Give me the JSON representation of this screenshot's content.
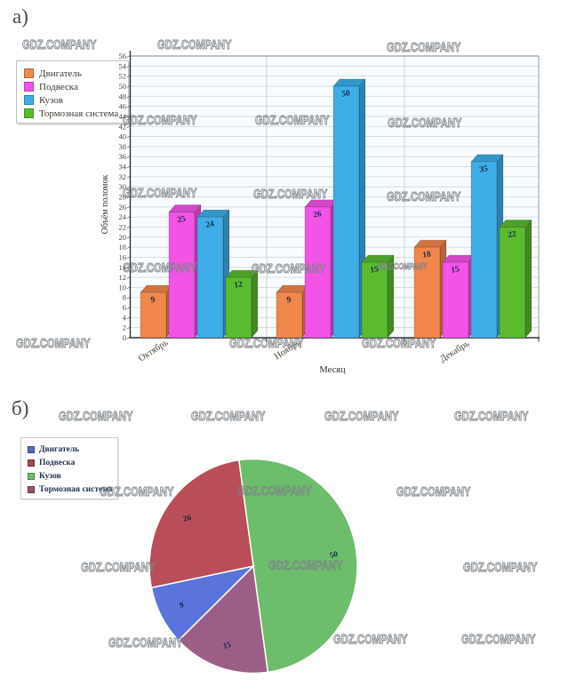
{
  "watermark": {
    "text": "GDZ.COMPANY"
  },
  "section_a": {
    "label": "а)"
  },
  "section_b": {
    "label": "б)"
  },
  "chart_data": [
    {
      "type": "bar",
      "style": "3d-bars",
      "categories": [
        "Октябрь",
        "Ноябрь",
        "Декабрь"
      ],
      "series": [
        {
          "name": "Двигатель",
          "color": "#F2874B",
          "values": [
            9,
            9,
            18
          ]
        },
        {
          "name": "Подвеска",
          "color": "#F353E7",
          "values": [
            25,
            26,
            15
          ]
        },
        {
          "name": "Кузов",
          "color": "#3DAEE8",
          "values": [
            24,
            50,
            35
          ]
        },
        {
          "name": "Тормозная система",
          "color": "#5ABB2F",
          "values": [
            12,
            15,
            22
          ]
        }
      ],
      "xlabel": "Месяц",
      "ylabel": "Объём поломок",
      "ylim": [
        0,
        56
      ],
      "ytick_step": 2,
      "grid": true,
      "legend_position": "top-left",
      "value_labels": true
    },
    {
      "type": "pie",
      "start_angle_deg": -8,
      "direction": "clockwise",
      "slices": [
        {
          "name": "Кузов",
          "value": 50,
          "color": "#6CBE6B"
        },
        {
          "name": "Тормозная система",
          "value": 15,
          "color": "#9B5F85"
        },
        {
          "name": "Двигатель",
          "value": 9,
          "color": "#5B74DB"
        },
        {
          "name": "Подвеска",
          "value": 26,
          "color": "#B94D58"
        }
      ],
      "legend": [
        {
          "name": "Двигатель",
          "color": "#5568C4"
        },
        {
          "name": "Подвеска",
          "color": "#AB4450"
        },
        {
          "name": "Кузов",
          "color": "#6CBE6B"
        },
        {
          "name": "Тормозная система",
          "color": "#9B5170"
        }
      ],
      "legend_position": "top-left",
      "value_labels": true
    }
  ]
}
